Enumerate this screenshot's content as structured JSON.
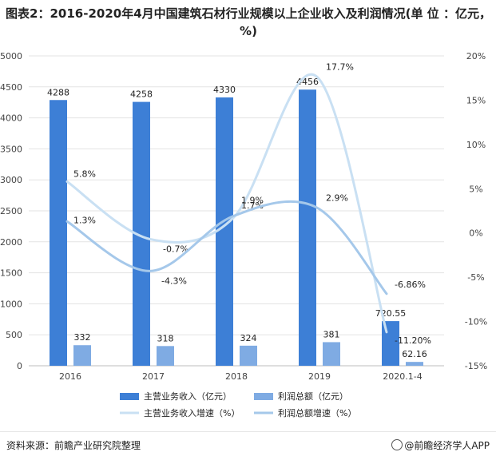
{
  "page": {
    "title": "图表2：2016-2020年4月中国建筑石材行业规模以上企业收入及利润情况(单 位 ：亿元，%)",
    "source": "资料来源：前瞻产业研究院整理",
    "brand": "@前瞻经济学人APP"
  },
  "chart_data": {
    "type": "bar",
    "categories": [
      "2016",
      "2017",
      "2018",
      "2019",
      "2020.1-4"
    ],
    "y_left": {
      "min": 0,
      "max": 5000,
      "step": 500,
      "ticks": [
        "0",
        "500",
        "1000",
        "1500",
        "2000",
        "2500",
        "3000",
        "3500",
        "4000",
        "4500",
        "5000"
      ]
    },
    "y_right": {
      "min": -15,
      "max": 20,
      "step": 5,
      "ticks": [
        "-15%",
        "-10%",
        "-5%",
        "0%",
        "5%",
        "10%",
        "15%",
        "20%"
      ]
    },
    "grid": true,
    "legend_position": "bottom",
    "series": [
      {
        "name": "主营业务收入（亿元）",
        "kind": "bar",
        "axis": "left",
        "color": "#3d7fd6",
        "values": [
          4288,
          4258,
          4330,
          4456,
          720.55
        ],
        "labels": [
          "4288",
          "4258",
          "4330",
          "4456",
          "720.55"
        ]
      },
      {
        "name": "利润总额（亿元）",
        "kind": "bar",
        "axis": "left",
        "color": "#7fabe3",
        "values": [
          332,
          318,
          324,
          381,
          62.16
        ],
        "labels": [
          "332",
          "318",
          "324",
          "381",
          "62.16"
        ]
      },
      {
        "name": "主营业务收入增速（%）",
        "kind": "line",
        "axis": "right",
        "color": "#c9e0f3",
        "values": [
          5.8,
          -0.7,
          1.7,
          17.7,
          -11.2
        ],
        "labels": [
          "5.8%",
          "-0.7%",
          "1.7%",
          "17.7%",
          "-11.20%"
        ]
      },
      {
        "name": "利润总额增速（%）",
        "kind": "line",
        "axis": "right",
        "color": "#a5c8ea",
        "values": [
          1.3,
          -4.3,
          1.9,
          2.9,
          -6.86
        ],
        "labels": [
          "1.3%",
          "-4.3%",
          "1.9%",
          "2.9%",
          "-6.86%"
        ]
      }
    ]
  }
}
